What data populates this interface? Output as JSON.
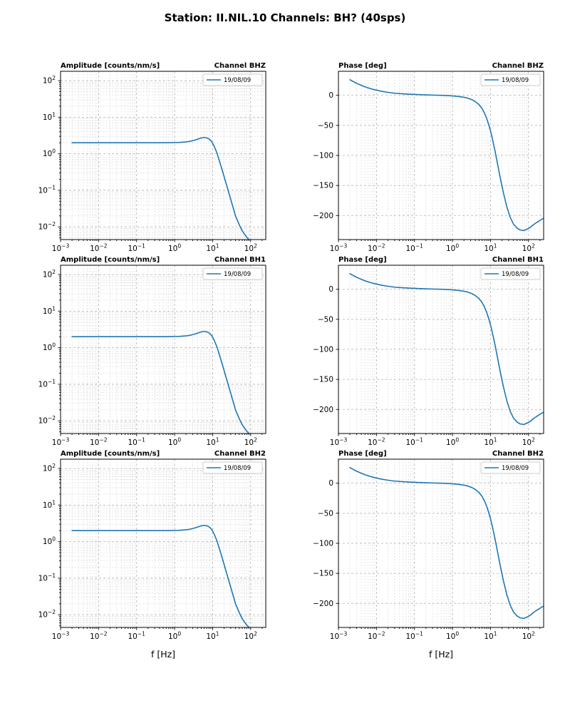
{
  "title": "Station: II.NIL.10 Channels: BH? (40sps)",
  "figure": {
    "xlabel": "f [Hz]",
    "legend_label": "19/08/09",
    "line_color": "#1f77b4"
  },
  "chart_data": [
    {
      "type": "line",
      "channel": "BHZ",
      "quantity": "amplitude",
      "title_left": "Amplitude [counts/nm/s]",
      "title_right": "Channel BHZ",
      "legend": [
        "19/08/09"
      ],
      "xscale": "log",
      "yscale": "log",
      "xlim": [
        0.001,
        250
      ],
      "ylim": [
        0.0045,
        180
      ],
      "xticks_exp": [
        -3,
        -2,
        -1,
        0,
        1,
        2
      ],
      "yticks_exp": [
        -2,
        -1,
        0,
        1,
        2
      ],
      "xlabel": "",
      "series": [
        {
          "name": "19/08/09",
          "color": "#1f77b4",
          "x": [
            0.002,
            0.003,
            0.005,
            0.008,
            0.013,
            0.02,
            0.03,
            0.05,
            0.08,
            0.13,
            0.2,
            0.3,
            0.5,
            0.8,
            1.0,
            1.3,
            1.6,
            2.0,
            2.5,
            3.2,
            4.0,
            5.0,
            6.0,
            7.0,
            8.0,
            9.0,
            10,
            11,
            13,
            15,
            18,
            22,
            27,
            33,
            40,
            50,
            60,
            75,
            90,
            105
          ],
          "y": [
            2.0,
            2.0,
            2.0,
            2.0,
            2.0,
            2.0,
            2.0,
            2.0,
            2.0,
            2.0,
            2.0,
            2.0,
            2.0,
            2.01,
            2.02,
            2.04,
            2.07,
            2.11,
            2.18,
            2.32,
            2.5,
            2.7,
            2.78,
            2.72,
            2.55,
            2.3,
            1.95,
            1.6,
            1.05,
            0.65,
            0.35,
            0.17,
            0.082,
            0.04,
            0.02,
            0.0115,
            0.0078,
            0.0056,
            0.0045,
            0.0039
          ]
        }
      ]
    },
    {
      "type": "line",
      "channel": "BHZ",
      "quantity": "phase",
      "title_left": "Phase [deg]",
      "title_right": "Channel BHZ",
      "legend": [
        "19/08/09"
      ],
      "xscale": "log",
      "yscale": "linear",
      "xlim": [
        0.001,
        250
      ],
      "ylim": [
        -240,
        40
      ],
      "xticks_exp": [
        -3,
        -2,
        -1,
        0,
        1,
        2
      ],
      "yticks": [
        0,
        -50,
        -100,
        -150,
        -200
      ],
      "xlabel": "",
      "series": [
        {
          "name": "19/08/09",
          "color": "#1f77b4",
          "x": [
            0.002,
            0.003,
            0.005,
            0.008,
            0.013,
            0.02,
            0.03,
            0.05,
            0.08,
            0.13,
            0.2,
            0.3,
            0.5,
            0.8,
            1.0,
            1.3,
            1.6,
            2.0,
            2.5,
            3.2,
            4.0,
            5.0,
            6.0,
            7.0,
            8.0,
            9.0,
            10,
            11,
            13,
            15,
            18,
            22,
            27,
            33,
            40,
            50,
            60,
            75,
            90,
            110,
            130,
            160,
            200,
            240
          ],
          "y": [
            26,
            20,
            14,
            10,
            7,
            5,
            3.5,
            2.5,
            1.8,
            1.2,
            0.8,
            0.4,
            0,
            -0.5,
            -1,
            -1.6,
            -2.3,
            -3.2,
            -4.6,
            -7,
            -10.5,
            -15.5,
            -22,
            -30,
            -39,
            -49,
            -59,
            -70,
            -91,
            -111,
            -137,
            -163,
            -186,
            -203,
            -214,
            -221,
            -224,
            -225,
            -223,
            -220,
            -216,
            -212,
            -208,
            -205
          ]
        }
      ]
    },
    {
      "type": "line",
      "channel": "BH1",
      "quantity": "amplitude",
      "title_left": "Amplitude [counts/nm/s]",
      "title_right": "Channel BH1",
      "legend": [
        "19/08/09"
      ],
      "xscale": "log",
      "yscale": "log",
      "xlim": [
        0.001,
        250
      ],
      "ylim": [
        0.0045,
        180
      ],
      "xticks_exp": [
        -3,
        -2,
        -1,
        0,
        1,
        2
      ],
      "yticks_exp": [
        -2,
        -1,
        0,
        1,
        2
      ],
      "xlabel": "",
      "series": [
        {
          "name": "19/08/09",
          "color": "#1f77b4",
          "x": [
            0.002,
            0.003,
            0.005,
            0.008,
            0.013,
            0.02,
            0.03,
            0.05,
            0.08,
            0.13,
            0.2,
            0.3,
            0.5,
            0.8,
            1.0,
            1.3,
            1.6,
            2.0,
            2.5,
            3.2,
            4.0,
            5.0,
            6.0,
            7.0,
            8.0,
            9.0,
            10,
            11,
            13,
            15,
            18,
            22,
            27,
            33,
            40,
            50,
            60,
            75,
            90,
            105
          ],
          "y": [
            2.0,
            2.0,
            2.0,
            2.0,
            2.0,
            2.0,
            2.0,
            2.0,
            2.0,
            2.0,
            2.0,
            2.0,
            2.0,
            2.01,
            2.02,
            2.04,
            2.07,
            2.11,
            2.18,
            2.32,
            2.5,
            2.7,
            2.78,
            2.72,
            2.55,
            2.3,
            1.95,
            1.6,
            1.05,
            0.65,
            0.35,
            0.17,
            0.082,
            0.04,
            0.02,
            0.0115,
            0.0078,
            0.0056,
            0.0045,
            0.0039
          ]
        }
      ]
    },
    {
      "type": "line",
      "channel": "BH1",
      "quantity": "phase",
      "title_left": "Phase [deg]",
      "title_right": "Channel BH1",
      "legend": [
        "19/08/09"
      ],
      "xscale": "log",
      "yscale": "linear",
      "xlim": [
        0.001,
        250
      ],
      "ylim": [
        -240,
        40
      ],
      "xticks_exp": [
        -3,
        -2,
        -1,
        0,
        1,
        2
      ],
      "yticks": [
        0,
        -50,
        -100,
        -150,
        -200
      ],
      "xlabel": "",
      "series": [
        {
          "name": "19/08/09",
          "color": "#1f77b4",
          "x": [
            0.002,
            0.003,
            0.005,
            0.008,
            0.013,
            0.02,
            0.03,
            0.05,
            0.08,
            0.13,
            0.2,
            0.3,
            0.5,
            0.8,
            1.0,
            1.3,
            1.6,
            2.0,
            2.5,
            3.2,
            4.0,
            5.0,
            6.0,
            7.0,
            8.0,
            9.0,
            10,
            11,
            13,
            15,
            18,
            22,
            27,
            33,
            40,
            50,
            60,
            75,
            90,
            110,
            130,
            160,
            200,
            240
          ],
          "y": [
            26,
            20,
            14,
            10,
            7,
            5,
            3.5,
            2.5,
            1.8,
            1.2,
            0.8,
            0.4,
            0,
            -0.5,
            -1,
            -1.6,
            -2.3,
            -3.2,
            -4.6,
            -7,
            -10.5,
            -15.5,
            -22,
            -30,
            -39,
            -49,
            -59,
            -70,
            -91,
            -111,
            -137,
            -163,
            -186,
            -203,
            -214,
            -221,
            -224,
            -225,
            -223,
            -220,
            -216,
            -212,
            -208,
            -205
          ]
        }
      ]
    },
    {
      "type": "line",
      "channel": "BH2",
      "quantity": "amplitude",
      "title_left": "Amplitude [counts/nm/s]",
      "title_right": "Channel BH2",
      "legend": [
        "19/08/09"
      ],
      "xscale": "log",
      "yscale": "log",
      "xlim": [
        0.001,
        250
      ],
      "ylim": [
        0.0045,
        180
      ],
      "xticks_exp": [
        -3,
        -2,
        -1,
        0,
        1,
        2
      ],
      "yticks_exp": [
        -2,
        -1,
        0,
        1,
        2
      ],
      "xlabel": "f [Hz]",
      "series": [
        {
          "name": "19/08/09",
          "color": "#1f77b4",
          "x": [
            0.002,
            0.003,
            0.005,
            0.008,
            0.013,
            0.02,
            0.03,
            0.05,
            0.08,
            0.13,
            0.2,
            0.3,
            0.5,
            0.8,
            1.0,
            1.3,
            1.6,
            2.0,
            2.5,
            3.2,
            4.0,
            5.0,
            6.0,
            7.0,
            8.0,
            9.0,
            10,
            11,
            13,
            15,
            18,
            22,
            27,
            33,
            40,
            50,
            60,
            75,
            90,
            105
          ],
          "y": [
            2.0,
            2.0,
            2.0,
            2.0,
            2.0,
            2.0,
            2.0,
            2.0,
            2.0,
            2.0,
            2.0,
            2.0,
            2.0,
            2.01,
            2.02,
            2.04,
            2.07,
            2.11,
            2.18,
            2.32,
            2.5,
            2.7,
            2.78,
            2.72,
            2.55,
            2.3,
            1.95,
            1.6,
            1.05,
            0.65,
            0.35,
            0.17,
            0.082,
            0.04,
            0.02,
            0.0115,
            0.0078,
            0.0056,
            0.0045,
            0.0039
          ]
        }
      ]
    },
    {
      "type": "line",
      "channel": "BH2",
      "quantity": "phase",
      "title_left": "Phase [deg]",
      "title_right": "Channel BH2",
      "legend": [
        "19/08/09"
      ],
      "xscale": "log",
      "yscale": "linear",
      "xlim": [
        0.001,
        250
      ],
      "ylim": [
        -240,
        40
      ],
      "xticks_exp": [
        -3,
        -2,
        -1,
        0,
        1,
        2
      ],
      "yticks": [
        0,
        -50,
        -100,
        -150,
        -200
      ],
      "xlabel": "f [Hz]",
      "series": [
        {
          "name": "19/08/09",
          "color": "#1f77b4",
          "x": [
            0.002,
            0.003,
            0.005,
            0.008,
            0.013,
            0.02,
            0.03,
            0.05,
            0.08,
            0.13,
            0.2,
            0.3,
            0.5,
            0.8,
            1.0,
            1.3,
            1.6,
            2.0,
            2.5,
            3.2,
            4.0,
            5.0,
            6.0,
            7.0,
            8.0,
            9.0,
            10,
            11,
            13,
            15,
            18,
            22,
            27,
            33,
            40,
            50,
            60,
            75,
            90,
            110,
            130,
            160,
            200,
            240
          ],
          "y": [
            26,
            20,
            14,
            10,
            7,
            5,
            3.5,
            2.5,
            1.8,
            1.2,
            0.8,
            0.4,
            0,
            -0.5,
            -1,
            -1.6,
            -2.3,
            -3.2,
            -4.6,
            -7,
            -10.5,
            -15.5,
            -22,
            -30,
            -39,
            -49,
            -59,
            -70,
            -91,
            -111,
            -137,
            -163,
            -186,
            -203,
            -214,
            -221,
            -224,
            -225,
            -223,
            -220,
            -216,
            -212,
            -208,
            -205
          ]
        }
      ]
    }
  ]
}
